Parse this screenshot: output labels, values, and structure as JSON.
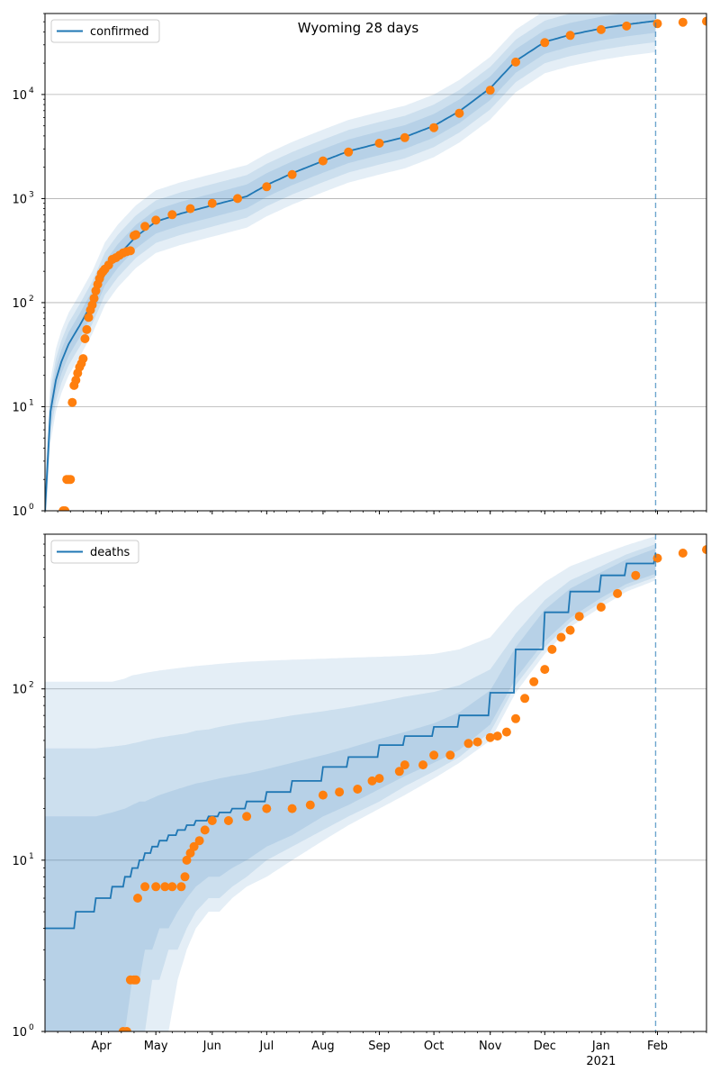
{
  "figure": {
    "title": "Wyoming 28 days"
  },
  "colors": {
    "model_line": "#1f77b4",
    "observed_points": "#ff7f0e",
    "band": "#1f77b4",
    "grid": "#b0b0b0",
    "forecast_marker": "#1f77b4"
  },
  "x_axis": {
    "start": "2020-03-01",
    "end": "2021-02-28",
    "forecast_start": "2021-01-31",
    "month_ticks": [
      {
        "date": "2020-04-01",
        "label": "Apr"
      },
      {
        "date": "2020-05-01",
        "label": "May"
      },
      {
        "date": "2020-06-01",
        "label": "Jun"
      },
      {
        "date": "2020-07-01",
        "label": "Jul"
      },
      {
        "date": "2020-08-01",
        "label": "Aug"
      },
      {
        "date": "2020-09-01",
        "label": "Sep"
      },
      {
        "date": "2020-10-01",
        "label": "Oct"
      },
      {
        "date": "2020-11-01",
        "label": "Nov"
      },
      {
        "date": "2020-12-01",
        "label": "Dec"
      },
      {
        "date": "2021-01-01",
        "label": "Jan"
      },
      {
        "date": "2021-02-01",
        "label": "Feb"
      }
    ],
    "year_label": {
      "date": "2021-01-01",
      "label": "2021"
    }
  },
  "chart_data": [
    {
      "type": "line",
      "title": "Wyoming 28 days",
      "xlabel": "",
      "ylabel": "",
      "yscale": "log",
      "ylim": [
        1,
        60000
      ],
      "y_ticks": [
        {
          "value": 1,
          "base": "10",
          "exp": "0"
        },
        {
          "value": 10,
          "base": "10",
          "exp": "1"
        },
        {
          "value": 100,
          "base": "10",
          "exp": "2"
        },
        {
          "value": 1000,
          "base": "10",
          "exp": "3"
        },
        {
          "value": 10000,
          "base": "10",
          "exp": "4"
        }
      ],
      "grid": "horizontal",
      "legend": {
        "position": "top-left",
        "entries": [
          "confirmed"
        ]
      },
      "series": [
        {
          "name": "confirmed",
          "kind": "model",
          "x": [
            "2020-03-01",
            "2020-03-04",
            "2020-03-07",
            "2020-03-10",
            "2020-03-14",
            "2020-03-20",
            "2020-03-27",
            "2020-04-03",
            "2020-04-10",
            "2020-04-20",
            "2020-05-01",
            "2020-05-15",
            "2020-06-01",
            "2020-06-20",
            "2020-07-01",
            "2020-07-15",
            "2020-08-01",
            "2020-08-15",
            "2020-09-01",
            "2020-09-15",
            "2020-10-01",
            "2020-10-15",
            "2020-11-01",
            "2020-11-15",
            "2020-12-01",
            "2020-12-15",
            "2021-01-01",
            "2021-01-15",
            "2021-01-31"
          ],
          "y": [
            1,
            9,
            18,
            27,
            40,
            60,
            100,
            190,
            280,
            430,
            600,
            720,
            860,
            1050,
            1350,
            1750,
            2300,
            2850,
            3400,
            3900,
            5000,
            6900,
            11500,
            21000,
            32000,
            37500,
            43000,
            47000,
            51000
          ],
          "band_multipliers": [
            1.3,
            1.6,
            2.0
          ]
        },
        {
          "name": "observed",
          "kind": "points",
          "x": [
            "2020-03-11",
            "2020-03-12",
            "2020-03-13",
            "2020-03-14",
            "2020-03-15",
            "2020-03-16",
            "2020-03-17",
            "2020-03-18",
            "2020-03-19",
            "2020-03-20",
            "2020-03-21",
            "2020-03-22",
            "2020-03-23",
            "2020-03-24",
            "2020-03-25",
            "2020-03-26",
            "2020-03-27",
            "2020-03-28",
            "2020-03-29",
            "2020-03-30",
            "2020-03-31",
            "2020-04-01",
            "2020-04-02",
            "2020-04-03",
            "2020-04-05",
            "2020-04-07",
            "2020-04-09",
            "2020-04-11",
            "2020-04-13",
            "2020-04-15",
            "2020-04-17",
            "2020-04-19",
            "2020-04-20",
            "2020-04-25",
            "2020-05-01",
            "2020-05-10",
            "2020-05-20",
            "2020-06-01",
            "2020-06-15",
            "2020-07-01",
            "2020-07-15",
            "2020-08-01",
            "2020-08-15",
            "2020-09-01",
            "2020-09-15",
            "2020-10-01",
            "2020-10-15",
            "2020-11-01",
            "2020-11-15",
            "2020-12-01",
            "2020-12-15",
            "2021-01-01",
            "2021-01-15",
            "2021-02-01",
            "2021-02-15",
            "2021-02-28"
          ],
          "y": [
            1,
            1,
            2,
            2,
            2,
            11,
            16,
            18,
            21,
            24,
            26,
            29,
            45,
            55,
            72,
            85,
            95,
            110,
            130,
            150,
            170,
            190,
            200,
            210,
            230,
            260,
            270,
            285,
            300,
            310,
            315,
            440,
            450,
            540,
            620,
            700,
            800,
            900,
            1000,
            1300,
            1700,
            2300,
            2800,
            3400,
            3850,
            4800,
            6600,
            11000,
            20500,
            31500,
            37000,
            42000,
            45500,
            48000,
            49500,
            50500
          ]
        }
      ]
    },
    {
      "type": "line",
      "title": "",
      "xlabel": "",
      "ylabel": "",
      "yscale": "log",
      "ylim": [
        1,
        800
      ],
      "y_ticks": [
        {
          "value": 1,
          "base": "10",
          "exp": "0"
        },
        {
          "value": 10,
          "base": "10",
          "exp": "1"
        },
        {
          "value": 100,
          "base": "10",
          "exp": "2"
        }
      ],
      "grid": "horizontal",
      "legend": {
        "position": "top-left",
        "entries": [
          "deaths"
        ]
      },
      "series": [
        {
          "name": "deaths",
          "kind": "model",
          "step": true,
          "x": [
            "2020-03-01",
            "2020-03-18",
            "2020-03-29",
            "2020-04-07",
            "2020-04-14",
            "2020-04-18",
            "2020-04-22",
            "2020-04-25",
            "2020-04-29",
            "2020-05-03",
            "2020-05-08",
            "2020-05-13",
            "2020-05-18",
            "2020-05-23",
            "2020-05-30",
            "2020-06-05",
            "2020-06-12",
            "2020-06-20",
            "2020-07-01",
            "2020-07-15",
            "2020-08-01",
            "2020-08-15",
            "2020-09-01",
            "2020-09-15",
            "2020-10-01",
            "2020-10-15",
            "2020-11-01",
            "2020-11-15",
            "2020-12-01",
            "2020-12-15",
            "2021-01-01",
            "2021-01-15",
            "2021-01-31"
          ],
          "y": [
            4,
            5,
            6,
            7,
            8,
            9,
            10,
            11,
            12,
            13,
            14,
            15,
            16,
            17,
            18,
            19,
            20,
            22,
            25,
            29,
            35,
            40,
            47,
            53,
            60,
            70,
            95,
            170,
            280,
            370,
            460,
            540,
            620
          ],
          "bands": [
            {
              "lower": [
                1,
                1,
                1,
                1,
                1,
                2,
                2,
                3,
                3,
                4,
                4,
                5,
                6,
                7,
                8,
                8,
                9,
                10,
                12,
                14,
                18,
                21,
                26,
                31,
                37,
                44,
                62,
                115,
                190,
                260,
                340,
                410,
                470
              ],
              "upper": [
                18,
                18,
                18,
                19,
                20,
                21,
                22,
                22,
                23,
                24,
                25,
                26,
                27,
                28,
                29,
                30,
                31,
                32,
                34,
                37,
                41,
                45,
                51,
                56,
                63,
                73,
                98,
                175,
                290,
                385,
                480,
                570,
                660
              ]
            },
            {
              "lower": [
                1,
                1,
                1,
                1,
                1,
                1,
                1,
                1,
                2,
                2,
                3,
                3,
                4,
                5,
                6,
                6,
                7,
                8,
                10,
                12,
                15,
                18,
                22,
                27,
                33,
                40,
                56,
                105,
                175,
                245,
                320,
                390,
                450
              ],
              "upper": [
                45,
                45,
                45,
                46,
                47,
                48,
                49,
                50,
                51,
                52,
                53,
                54,
                55,
                57,
                58,
                60,
                62,
                64,
                66,
                70,
                74,
                78,
                84,
                90,
                96,
                105,
                130,
                210,
                330,
                430,
                520,
                610,
                700
              ]
            },
            {
              "lower": [
                1,
                1,
                1,
                1,
                1,
                1,
                1,
                1,
                1,
                1,
                1,
                2,
                3,
                4,
                5,
                5,
                6,
                7,
                8,
                10,
                13,
                16,
                20,
                24,
                30,
                37,
                50,
                95,
                160,
                230,
                300,
                370,
                430
              ],
              "upper": [
                110,
                110,
                110,
                110,
                115,
                120,
                122,
                124,
                126,
                128,
                130,
                132,
                134,
                136,
                138,
                140,
                142,
                144,
                146,
                148,
                150,
                152,
                154,
                156,
                160,
                170,
                200,
                300,
                420,
                520,
                610,
                690,
                780
              ]
            }
          ]
        },
        {
          "name": "observed",
          "kind": "points",
          "x": [
            "2020-04-13",
            "2020-04-15",
            "2020-04-17",
            "2020-04-19",
            "2020-04-20",
            "2020-04-21",
            "2020-04-25",
            "2020-05-01",
            "2020-05-06",
            "2020-05-10",
            "2020-05-15",
            "2020-05-17",
            "2020-05-18",
            "2020-05-20",
            "2020-05-22",
            "2020-05-25",
            "2020-05-28",
            "2020-06-01",
            "2020-06-10",
            "2020-06-20",
            "2020-07-01",
            "2020-07-15",
            "2020-07-25",
            "2020-08-01",
            "2020-08-10",
            "2020-08-20",
            "2020-08-28",
            "2020-09-01",
            "2020-09-12",
            "2020-09-15",
            "2020-09-25",
            "2020-10-01",
            "2020-10-10",
            "2020-10-20",
            "2020-10-25",
            "2020-11-01",
            "2020-11-05",
            "2020-11-10",
            "2020-11-15",
            "2020-11-20",
            "2020-11-25",
            "2020-12-01",
            "2020-12-05",
            "2020-12-10",
            "2020-12-15",
            "2020-12-20",
            "2021-01-01",
            "2021-01-10",
            "2021-01-20",
            "2021-02-01",
            "2021-02-15",
            "2021-02-28"
          ],
          "y": [
            1,
            1,
            2,
            2,
            2,
            6,
            7,
            7,
            7,
            7,
            7,
            8,
            10,
            11,
            12,
            13,
            15,
            17,
            17,
            18,
            20,
            20,
            21,
            24,
            25,
            26,
            29,
            30,
            33,
            36,
            36,
            41,
            41,
            48,
            49,
            52,
            53,
            56,
            67,
            88,
            110,
            130,
            170,
            200,
            220,
            265,
            300,
            360,
            460,
            580,
            620,
            650
          ]
        }
      ]
    }
  ]
}
